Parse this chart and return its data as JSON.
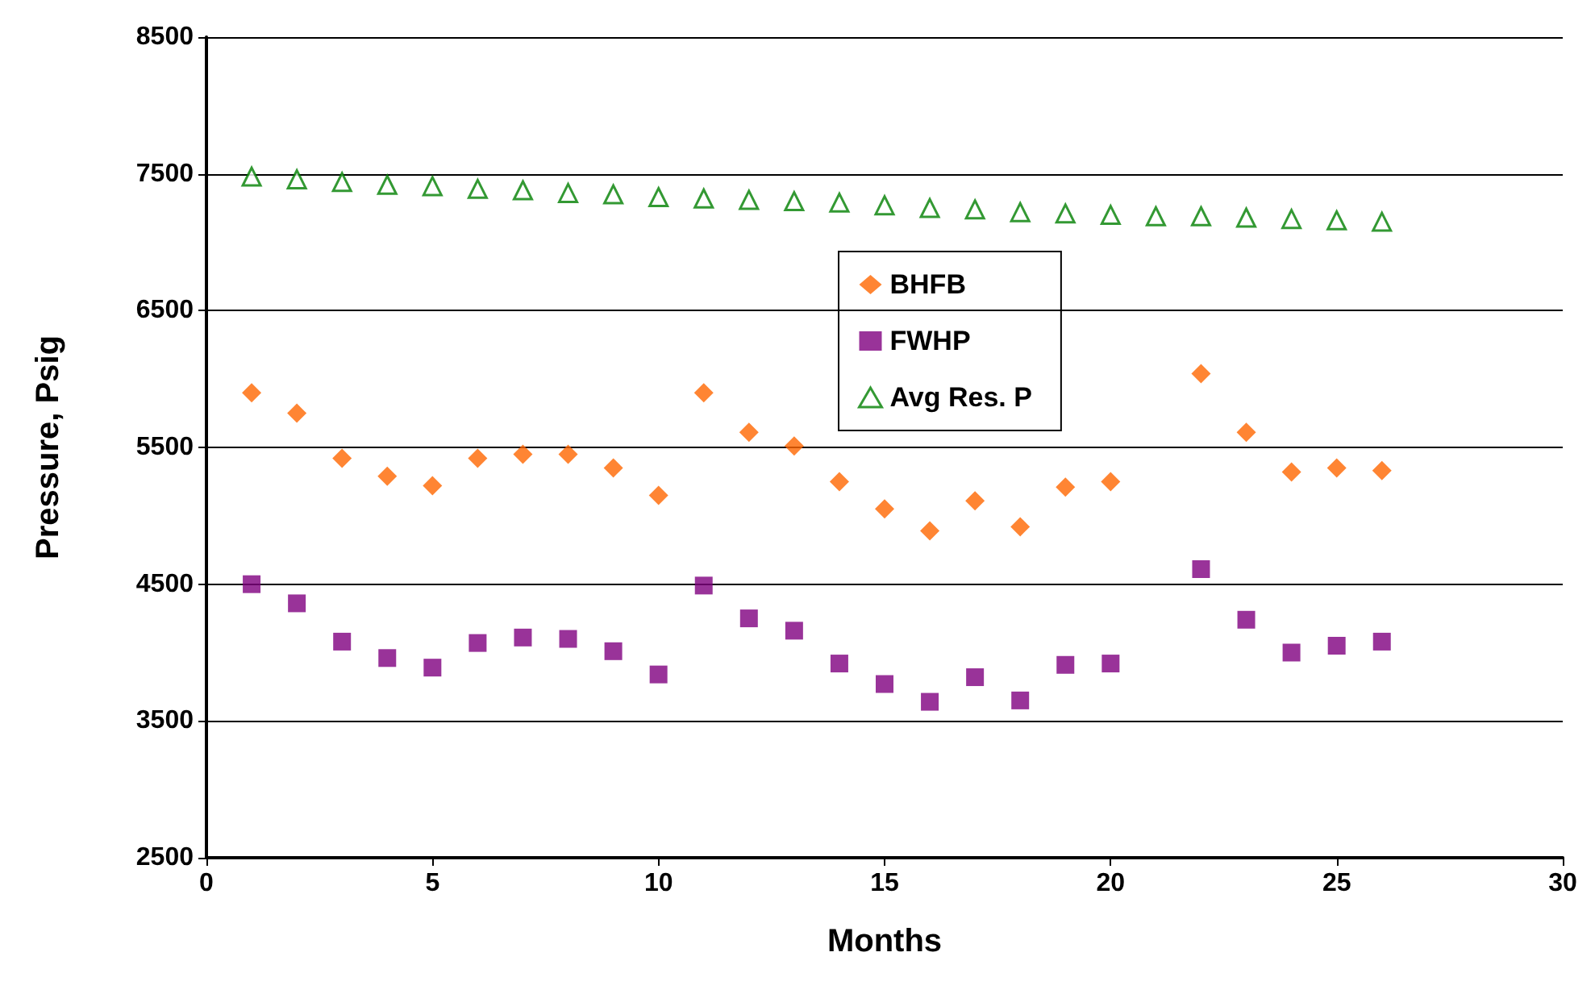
{
  "chart_data": {
    "type": "scatter",
    "xlabel": "Months",
    "ylabel": "Pressure, Psig",
    "x": [
      1,
      2,
      3,
      4,
      5,
      6,
      7,
      8,
      9,
      10,
      11,
      12,
      13,
      14,
      15,
      16,
      17,
      18,
      19,
      20,
      21,
      22,
      23,
      24,
      25,
      26
    ],
    "series": [
      {
        "name": "BHFB",
        "color": "#ff6600",
        "marker": "diamond",
        "values": [
          5900,
          5750,
          5420,
          5290,
          5220,
          5420,
          5450,
          5450,
          5350,
          5150,
          5900,
          5610,
          5510,
          5250,
          5050,
          4890,
          5110,
          4920,
          5210,
          5250,
          null,
          6040,
          5610,
          5320,
          5350,
          5330
        ]
      },
      {
        "name": "FWHP",
        "color": "#800080",
        "marker": "square",
        "values": [
          4500,
          4360,
          4080,
          3960,
          3890,
          4070,
          4110,
          4100,
          4010,
          3840,
          4490,
          4250,
          4160,
          3920,
          3770,
          3640,
          3820,
          3650,
          3910,
          3920,
          null,
          4610,
          4240,
          4000,
          4050,
          4080
        ]
      },
      {
        "name": "Avg Res. P",
        "color": "#008000",
        "marker": "triangle",
        "values": [
          7480,
          7460,
          7440,
          7420,
          7410,
          7390,
          7380,
          7360,
          7350,
          7330,
          7320,
          7310,
          7300,
          7290,
          7270,
          7250,
          7240,
          7220,
          7210,
          7200,
          7190,
          7190,
          7180,
          7170,
          7160,
          7150
        ]
      }
    ],
    "xlim": [
      0,
      30
    ],
    "xticks": [
      0,
      5,
      10,
      15,
      20,
      25,
      30
    ],
    "ylim": [
      2500,
      8500
    ],
    "yticks": [
      2500,
      3500,
      4500,
      5500,
      6500,
      7500,
      8500
    ],
    "grid": "y",
    "legend": "top"
  }
}
